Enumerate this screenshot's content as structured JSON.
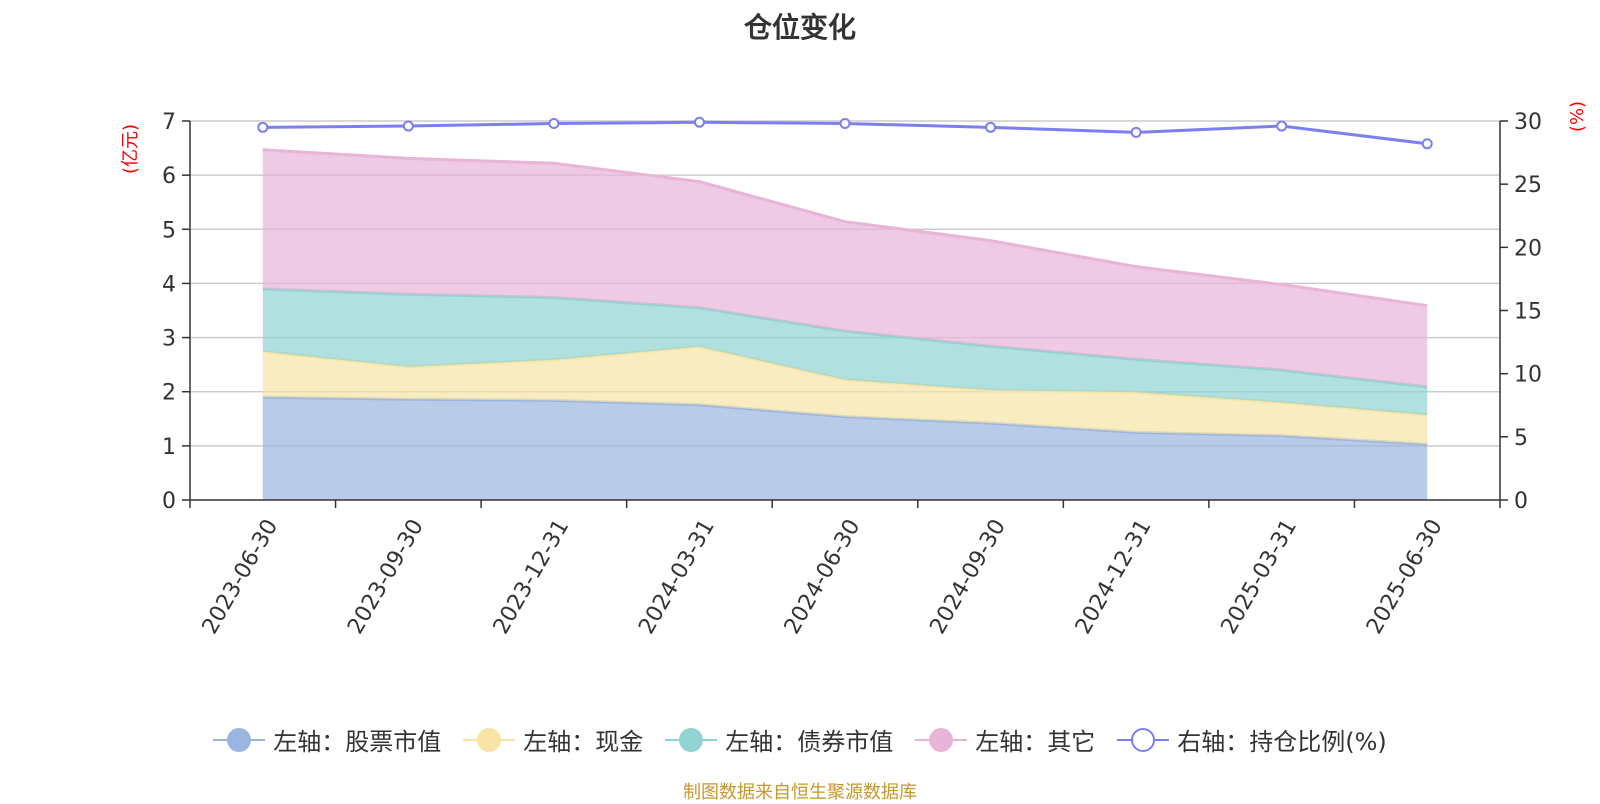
{
  "title": "仓位变化",
  "footer": "制图数据来自恒生聚源数据库",
  "left_unit": "(亿元)",
  "right_unit": "(%)",
  "colors": {
    "stock": "#9ab6e0",
    "cash": "#f7e4a6",
    "bond": "#8fd3d3",
    "other": "#e8b4d8",
    "ratio": "#7b7ff0"
  },
  "chart_data": {
    "type": "area",
    "title": "仓位变化",
    "x": [
      "2023-06-30",
      "2023-09-30",
      "2023-12-31",
      "2024-03-31",
      "2024-06-30",
      "2024-09-30",
      "2024-12-31",
      "2025-03-31",
      "2025-06-30"
    ],
    "left_axis": {
      "unit": "(亿元)",
      "ylim": [
        0,
        7
      ],
      "ticks": [
        0,
        1,
        2,
        3,
        4,
        5,
        6,
        7
      ]
    },
    "right_axis": {
      "unit": "(%)",
      "ylim": [
        0,
        30
      ],
      "ticks": [
        0,
        5,
        10,
        15,
        20,
        25,
        30
      ]
    },
    "stacked": true,
    "series": [
      {
        "name": "左轴：股票市值",
        "key": "stock",
        "axis": "left",
        "type": "area",
        "values": [
          1.9,
          1.86,
          1.84,
          1.76,
          1.54,
          1.42,
          1.25,
          1.19,
          1.03
        ]
      },
      {
        "name": "左轴：现金",
        "key": "cash",
        "axis": "left",
        "type": "area",
        "values": [
          0.84,
          0.6,
          0.75,
          1.07,
          0.68,
          0.61,
          0.74,
          0.61,
          0.54
        ]
      },
      {
        "name": "左轴：债券市值",
        "key": "bond",
        "axis": "left",
        "type": "area",
        "values": [
          1.16,
          1.34,
          1.15,
          0.72,
          0.9,
          0.81,
          0.61,
          0.6,
          0.52
        ]
      },
      {
        "name": "左轴：其它",
        "key": "other",
        "axis": "left",
        "type": "area",
        "values": [
          2.57,
          2.51,
          2.48,
          2.33,
          2.02,
          1.95,
          1.71,
          1.58,
          1.5
        ]
      },
      {
        "name": "右轴：持仓比例(%)",
        "key": "ratio",
        "axis": "right",
        "type": "line",
        "values": [
          29.5,
          29.6,
          29.8,
          29.9,
          29.8,
          29.5,
          29.1,
          29.6,
          28.2
        ]
      }
    ],
    "grid": true,
    "legend_position": "bottom"
  }
}
